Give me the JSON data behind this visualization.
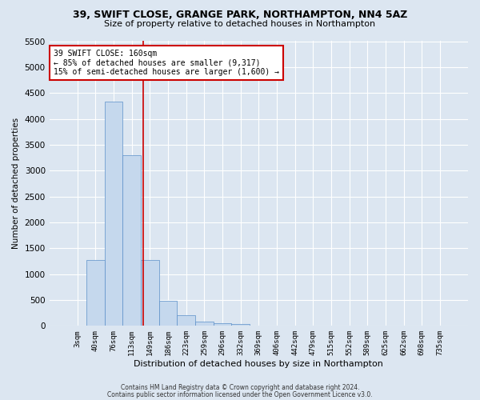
{
  "title_line1": "39, SWIFT CLOSE, GRANGE PARK, NORTHAMPTON, NN4 5AZ",
  "title_line2": "Size of property relative to detached houses in Northampton",
  "xlabel": "Distribution of detached houses by size in Northampton",
  "ylabel": "Number of detached properties",
  "footer_line1": "Contains HM Land Registry data © Crown copyright and database right 2024.",
  "footer_line2": "Contains public sector information licensed under the Open Government Licence v3.0.",
  "bar_labels": [
    "3sqm",
    "40sqm",
    "76sqm",
    "113sqm",
    "149sqm",
    "186sqm",
    "223sqm",
    "259sqm",
    "296sqm",
    "332sqm",
    "369sqm",
    "406sqm",
    "442sqm",
    "479sqm",
    "515sqm",
    "552sqm",
    "589sqm",
    "625sqm",
    "662sqm",
    "698sqm",
    "735sqm"
  ],
  "bar_values": [
    0,
    1270,
    4330,
    3300,
    1280,
    480,
    210,
    90,
    55,
    40,
    0,
    0,
    0,
    0,
    0,
    0,
    0,
    0,
    0,
    0,
    0
  ],
  "bar_color": "#c5d8ed",
  "bar_edge_color": "#5b8fc9",
  "background_color": "#dce6f1",
  "plot_bg_color": "#dce6f1",
  "grid_color": "#ffffff",
  "annotation_text": "39 SWIFT CLOSE: 160sqm\n← 85% of detached houses are smaller (9,317)\n15% of semi-detached houses are larger (1,600) →",
  "annotation_box_color": "#ffffff",
  "annotation_border_color": "#cc0000",
  "vline_x": 3.65,
  "vline_color": "#cc0000",
  "ylim": [
    0,
    5500
  ],
  "yticks": [
    0,
    500,
    1000,
    1500,
    2000,
    2500,
    3000,
    3500,
    4000,
    4500,
    5000,
    5500
  ]
}
